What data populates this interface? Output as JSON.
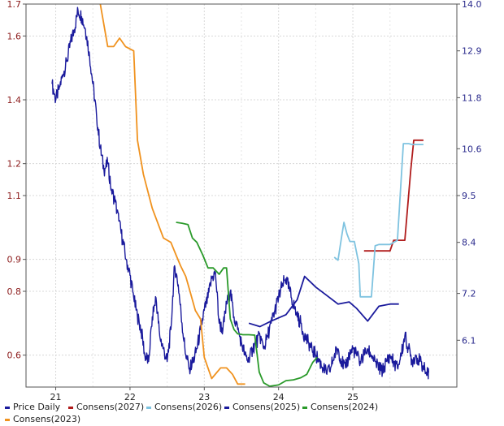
{
  "chart_data": {
    "type": "line",
    "title": "",
    "xlabel": "",
    "ylabel": "",
    "grid": true,
    "legend_position": "bottom",
    "x_range": [
      2020.6,
      2026.4
    ],
    "x_ticks": [
      {
        "value": 2021,
        "label": "21"
      },
      {
        "value": 2022,
        "label": "22"
      },
      {
        "value": 2023,
        "label": "23"
      },
      {
        "value": 2024,
        "label": "24"
      },
      {
        "value": 2025,
        "label": "25"
      }
    ],
    "y_left": {
      "range": [
        0.5,
        1.7
      ],
      "ticks": [
        {
          "value": 1.7,
          "label": "1.7"
        },
        {
          "value": 1.6,
          "label": "1.6"
        },
        {
          "value": 1.4,
          "label": "1.4"
        },
        {
          "value": 1.2,
          "label": "1.2"
        },
        {
          "value": 1.1,
          "label": "1.1"
        },
        {
          "value": 0.9,
          "label": "0.9"
        },
        {
          "value": 0.8,
          "label": "0.8"
        },
        {
          "value": 0.6,
          "label": "0.6"
        }
      ]
    },
    "y_right": {
      "range": [
        5.0,
        14.0
      ],
      "ticks": [
        {
          "value": 14.0,
          "label": "14.0"
        },
        {
          "value": 12.9,
          "label": "12.9"
        },
        {
          "value": 11.8,
          "label": "11.8"
        },
        {
          "value": 10.6,
          "label": "10.6"
        },
        {
          "value": 9.5,
          "label": "9.5"
        },
        {
          "value": 8.4,
          "label": "8.4"
        },
        {
          "value": 7.2,
          "label": "7.2"
        },
        {
          "value": 6.1,
          "label": "6.1"
        }
      ]
    },
    "series": [
      {
        "name": "Price Daily",
        "axis": "left",
        "color": "#1a1a9c",
        "x": [
          2020.95,
          2021.0,
          2021.05,
          2021.1,
          2021.15,
          2021.2,
          2021.25,
          2021.3,
          2021.35,
          2021.4,
          2021.45,
          2021.5,
          2021.55,
          2021.6,
          2021.65,
          2021.7,
          2021.75,
          2021.8,
          2021.85,
          2021.9,
          2021.95,
          2022.0,
          2022.05,
          2022.1,
          2022.15,
          2022.2,
          2022.25,
          2022.3,
          2022.35,
          2022.4,
          2022.45,
          2022.5,
          2022.55,
          2022.6,
          2022.65,
          2022.7,
          2022.75,
          2022.8,
          2022.85,
          2022.9,
          2022.95,
          2023.0,
          2023.05,
          2023.1,
          2023.15,
          2023.2,
          2023.25,
          2023.3,
          2023.35,
          2023.4,
          2023.45,
          2023.5,
          2023.55,
          2023.6,
          2023.65,
          2023.7,
          2023.75,
          2023.8,
          2023.85,
          2023.9,
          2023.95,
          2024.0,
          2024.05,
          2024.1,
          2024.15,
          2024.2,
          2024.25,
          2024.3,
          2024.35,
          2024.4,
          2024.45,
          2024.5,
          2024.55,
          2024.6,
          2024.65,
          2024.7,
          2024.75,
          2024.8,
          2024.85,
          2024.9,
          2024.95,
          2025.0,
          2025.05,
          2025.1,
          2025.15,
          2025.2,
          2025.25,
          2025.3,
          2025.35,
          2025.4,
          2025.45,
          2025.5,
          2025.55,
          2025.6,
          2025.65,
          2025.7,
          2025.75,
          2025.8,
          2025.85,
          2025.9,
          2025.95,
          2026.0,
          2026.02
        ],
        "values": [
          1.45,
          1.4,
          1.44,
          1.48,
          1.52,
          1.58,
          1.62,
          1.68,
          1.66,
          1.62,
          1.55,
          1.45,
          1.35,
          1.25,
          1.18,
          1.2,
          1.12,
          1.08,
          1.02,
          0.96,
          0.9,
          0.85,
          0.78,
          0.72,
          0.68,
          0.6,
          0.58,
          0.72,
          0.78,
          0.66,
          0.62,
          0.58,
          0.68,
          0.88,
          0.82,
          0.7,
          0.6,
          0.56,
          0.58,
          0.62,
          0.68,
          0.74,
          0.78,
          0.84,
          0.86,
          0.7,
          0.68,
          0.76,
          0.8,
          0.72,
          0.68,
          0.64,
          0.6,
          0.58,
          0.62,
          0.64,
          0.66,
          0.62,
          0.66,
          0.7,
          0.74,
          0.78,
          0.82,
          0.84,
          0.8,
          0.76,
          0.72,
          0.7,
          0.66,
          0.64,
          0.62,
          0.6,
          0.58,
          0.56,
          0.54,
          0.56,
          0.6,
          0.62,
          0.58,
          0.56,
          0.6,
          0.62,
          0.6,
          0.58,
          0.6,
          0.62,
          0.6,
          0.58,
          0.56,
          0.55,
          0.58,
          0.6,
          0.58,
          0.56,
          0.6,
          0.66,
          0.62,
          0.58,
          0.6,
          0.58,
          0.56,
          0.54,
          0.545
        ]
      },
      {
        "name": "Consens(2027)",
        "axis": "right",
        "color": "#b01c1c",
        "x": [
          2025.15,
          2025.5,
          2025.55,
          2025.7,
          2025.78,
          2025.82,
          2025.95
        ],
        "values": [
          8.2,
          8.2,
          8.45,
          8.45,
          10.1,
          10.8,
          10.8
        ]
      },
      {
        "name": "Consens(2026)",
        "axis": "right",
        "color": "#7fc3e0",
        "x": [
          2024.75,
          2024.8,
          2024.85,
          2024.88,
          2024.92,
          2024.96,
          2025.02,
          2025.08,
          2025.1,
          2025.25,
          2025.3,
          2025.35,
          2025.5,
          2025.6,
          2025.68,
          2025.75,
          2025.8,
          2025.95
        ],
        "values": [
          8.05,
          7.98,
          8.55,
          8.87,
          8.6,
          8.42,
          8.42,
          7.9,
          7.12,
          7.12,
          8.32,
          8.35,
          8.35,
          8.45,
          10.72,
          10.72,
          10.7,
          10.7
        ]
      },
      {
        "name": "Consens(2025)",
        "axis": "right",
        "color": "#1a1a9c",
        "x": [
          2023.6,
          2023.75,
          2023.9,
          2024.1,
          2024.25,
          2024.35,
          2024.5,
          2024.65,
          2024.8,
          2024.95,
          2025.05,
          2025.2,
          2025.35,
          2025.5,
          2025.62
        ],
        "values": [
          6.5,
          6.42,
          6.55,
          6.7,
          7.05,
          7.6,
          7.35,
          7.15,
          6.95,
          7.0,
          6.85,
          6.55,
          6.9,
          6.95,
          6.95
        ]
      },
      {
        "name": "Consens(2024)",
        "axis": "right",
        "color": "#2a9a2a",
        "x": [
          2022.62,
          2022.7,
          2022.78,
          2022.84,
          2022.9,
          2022.98,
          2023.05,
          2023.12,
          2023.2,
          2023.26,
          2023.3,
          2023.35,
          2023.4,
          2023.45,
          2023.52,
          2023.6,
          2023.68,
          2023.74,
          2023.8,
          2023.88,
          2024.0,
          2024.1,
          2024.2,
          2024.3,
          2024.38,
          2024.46,
          2024.52
        ],
        "values": [
          8.87,
          8.85,
          8.82,
          8.5,
          8.4,
          8.1,
          7.8,
          7.8,
          7.65,
          7.8,
          7.8,
          6.6,
          6.35,
          6.25,
          6.23,
          6.23,
          6.22,
          5.35,
          5.1,
          5.02,
          5.05,
          5.15,
          5.17,
          5.22,
          5.3,
          5.58,
          5.7
        ]
      },
      {
        "name": "Consens(2023)",
        "axis": "right",
        "color": "#f0921e",
        "x": [
          2021.6,
          2021.7,
          2021.78,
          2021.86,
          2021.94,
          2022.05,
          2022.1,
          2022.18,
          2022.3,
          2022.45,
          2022.55,
          2022.62,
          2022.68,
          2022.75,
          2022.8,
          2022.88,
          2022.95,
          2023.0,
          2023.1,
          2023.22,
          2023.3,
          2023.38,
          2023.45,
          2023.55
        ],
        "values": [
          14.0,
          13.0,
          13.0,
          13.2,
          13.0,
          12.9,
          10.8,
          10.0,
          9.2,
          8.5,
          8.4,
          8.1,
          7.85,
          7.6,
          7.3,
          6.8,
          6.6,
          5.7,
          5.2,
          5.45,
          5.45,
          5.3,
          5.07,
          5.07
        ]
      }
    ]
  }
}
